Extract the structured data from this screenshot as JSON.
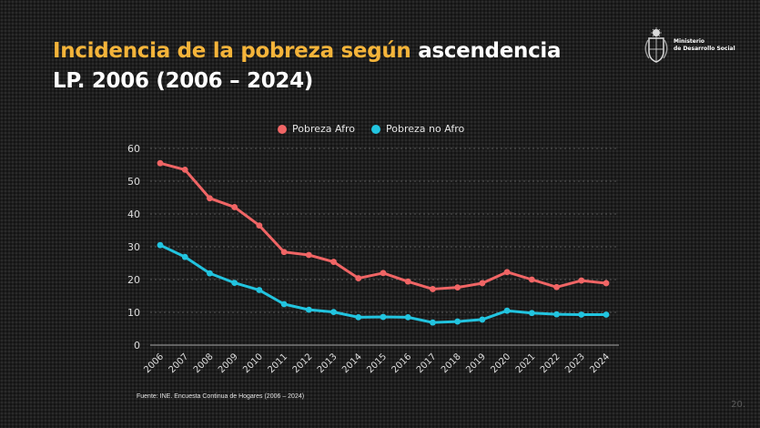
{
  "slide": {
    "title_highlight": "Incidencia de la pobreza según",
    "title_rest": " ascendencia",
    "title_line2": "LP. 2006  (2006 – 2024)",
    "org_line1": "Ministerio",
    "org_line2": "de Desarrollo Social",
    "source": "Fuente: INE. Encuesta Continua de Hogares (2006 – 2024)",
    "page_number": "20."
  },
  "colors": {
    "title_highlight": "#f4b43a",
    "afro": "#f06565",
    "no_afro": "#22c4df"
  },
  "icons": {
    "logo": "coat-of-arms-icon"
  },
  "chart_data": {
    "type": "line",
    "title": "",
    "xlabel": "",
    "ylabel": "",
    "ylim": [
      0,
      60
    ],
    "yticks": [
      0,
      10,
      20,
      30,
      40,
      50,
      60
    ],
    "grid": true,
    "legend_position": "top-center",
    "x": [
      "2006",
      "2007",
      "2008",
      "2009",
      "2010",
      "2011",
      "2012",
      "2013",
      "2014",
      "2015",
      "2016",
      "2017",
      "2018",
      "2019",
      "2020",
      "2021",
      "2022",
      "2023",
      "2024"
    ],
    "series": [
      {
        "name": "Pobreza Afro",
        "color": "#f06565",
        "values": [
          55.5,
          53.5,
          44.8,
          42.1,
          36.5,
          28.4,
          27.5,
          25.4,
          20.4,
          22.0,
          19.4,
          17.1,
          17.6,
          18.9,
          22.3,
          20.0,
          17.7,
          19.7,
          18.9
        ]
      },
      {
        "name": "Pobreza no Afro",
        "color": "#22c4df",
        "values": [
          30.5,
          26.9,
          21.9,
          19.0,
          16.8,
          12.5,
          10.8,
          10.1,
          8.5,
          8.6,
          8.5,
          6.9,
          7.2,
          7.8,
          10.5,
          9.8,
          9.4,
          9.3,
          9.3
        ]
      }
    ]
  }
}
